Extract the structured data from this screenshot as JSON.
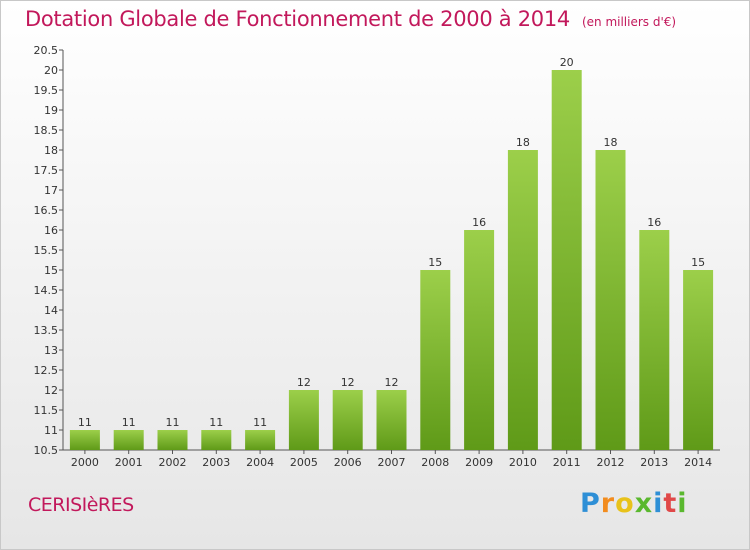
{
  "header": {
    "title": "Dotation Globale de Fonctionnement de 2000 à 2014",
    "units": "(en milliers d'€)"
  },
  "footer": {
    "commune": "CERISIèRES",
    "logo": {
      "letters": [
        "P",
        "r",
        "o",
        "x",
        "i",
        "t",
        "i"
      ],
      "colors": [
        "#2e8fd6",
        "#f28c1e",
        "#e8c21a",
        "#5ab82e",
        "#2e8fd6",
        "#e04848",
        "#5ab82e"
      ]
    }
  },
  "chart_data": {
    "type": "bar",
    "title": "Dotation Globale de Fonctionnement de 2000 à 2014",
    "subtitle": "(en milliers d'€)",
    "categories": [
      "2000",
      "2001",
      "2002",
      "2003",
      "2004",
      "2005",
      "2006",
      "2007",
      "2008",
      "2009",
      "2010",
      "2011",
      "2012",
      "2013",
      "2014"
    ],
    "values": [
      11,
      11,
      11,
      11,
      11,
      12,
      12,
      12,
      15,
      16,
      18,
      20,
      18,
      16,
      15
    ],
    "ylim": [
      10.5,
      20.5
    ],
    "yticks": [
      10.5,
      11,
      11.5,
      12,
      12.5,
      13,
      13.5,
      14,
      14.5,
      15,
      15.5,
      16,
      16.5,
      17,
      17.5,
      18,
      18.5,
      19,
      19.5,
      20,
      20.5
    ],
    "grid": false,
    "bar_color": "#7ab82e"
  }
}
